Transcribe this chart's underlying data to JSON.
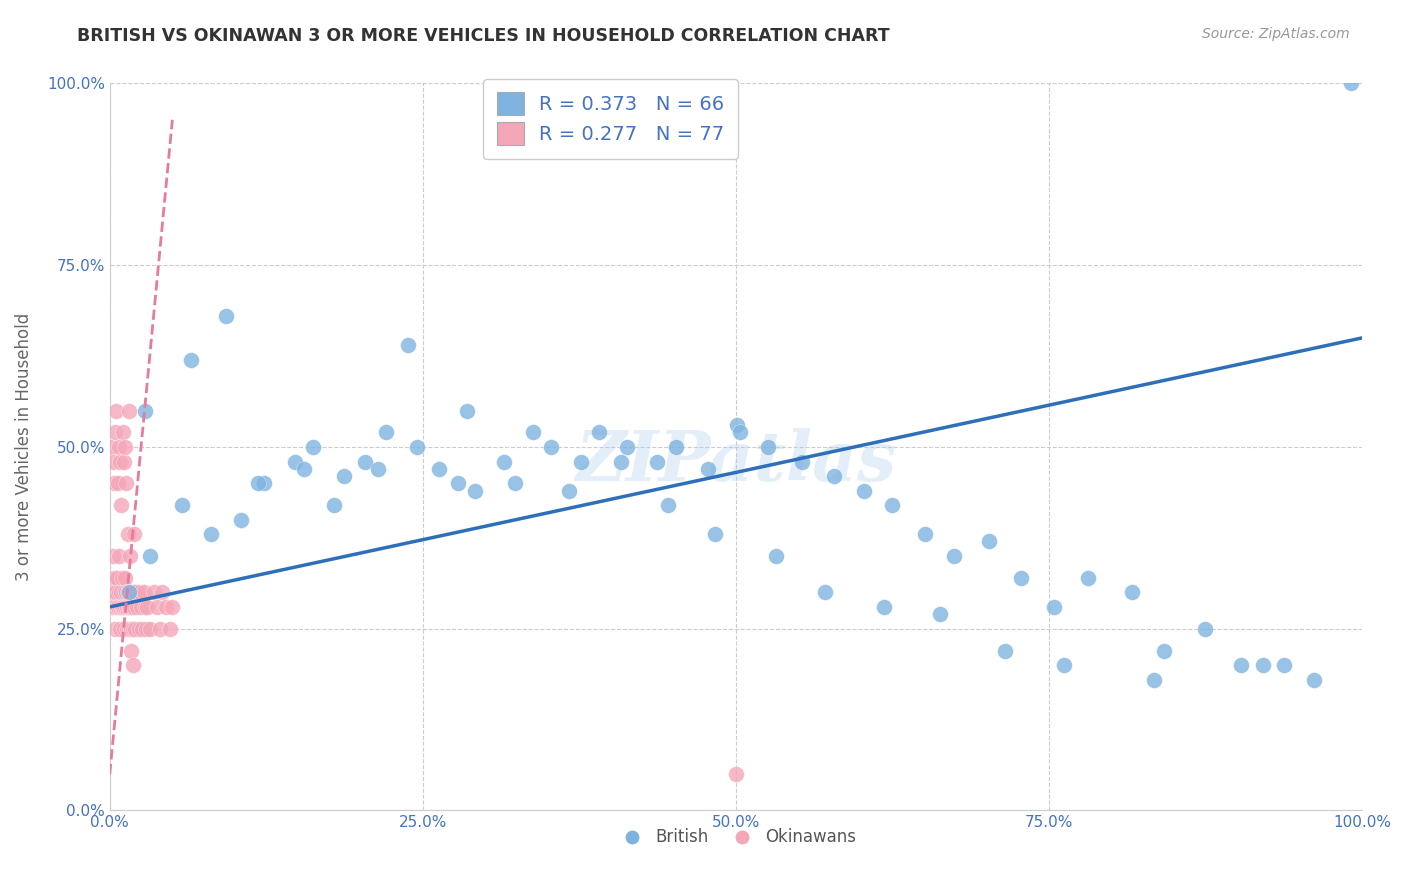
{
  "title": "BRITISH VS OKINAWAN 3 OR MORE VEHICLES IN HOUSEHOLD CORRELATION CHART",
  "source_text": "Source: ZipAtlas.com",
  "ylabel": "3 or more Vehicles in Household",
  "xlabel": "",
  "xlim": [
    0,
    100
  ],
  "ylim": [
    0,
    100
  ],
  "xticks": [
    0,
    25,
    50,
    75,
    100
  ],
  "yticks": [
    0,
    25,
    50,
    75,
    100
  ],
  "xticklabels": [
    "0.0%",
    "25.0%",
    "50.0%",
    "75.0%",
    "100.0%"
  ],
  "yticklabels": [
    "0.0%",
    "25.0%",
    "50.0%",
    "75.0%",
    "100.0%"
  ],
  "british_color": "#7eb3e0",
  "okinawan_color": "#f4a7b9",
  "british_line_color": "#2e6fba",
  "okinawan_line_color": "#e87a9a",
  "watermark": "ZIPatlas",
  "legend_british": "British",
  "legend_okinawan": "Okinawans",
  "R_british": 0.373,
  "N_british": 66,
  "R_okinawan": 0.277,
  "N_okinawan": 77,
  "british_x": [
    1.5,
    3.2,
    5.8,
    8.1,
    10.5,
    12.3,
    14.8,
    16.2,
    18.7,
    20.4,
    22.1,
    24.5,
    26.3,
    27.8,
    29.2,
    31.5,
    33.8,
    35.2,
    37.6,
    39.1,
    41.3,
    43.7,
    45.2,
    47.8,
    50.1,
    50.3,
    52.6,
    55.3,
    57.8,
    60.2,
    62.5,
    65.1,
    67.4,
    70.2,
    72.8,
    75.4,
    78.1,
    81.6,
    84.2,
    87.5,
    90.3,
    93.8,
    96.2,
    99.1,
    2.8,
    6.5,
    9.3,
    11.8,
    15.5,
    17.9,
    21.4,
    23.8,
    28.5,
    32.4,
    36.7,
    40.8,
    44.6,
    48.3,
    53.2,
    57.1,
    61.8,
    66.3,
    71.5,
    76.2,
    83.4,
    92.1
  ],
  "british_y": [
    30,
    35,
    42,
    38,
    40,
    45,
    48,
    50,
    46,
    48,
    52,
    50,
    47,
    45,
    44,
    48,
    52,
    50,
    48,
    52,
    50,
    48,
    50,
    47,
    53,
    52,
    50,
    48,
    46,
    44,
    42,
    38,
    35,
    37,
    32,
    28,
    32,
    30,
    22,
    25,
    20,
    20,
    18,
    100,
    55,
    62,
    68,
    45,
    47,
    42,
    47,
    64,
    55,
    45,
    44,
    48,
    42,
    38,
    35,
    30,
    28,
    27,
    22,
    20,
    18,
    20
  ],
  "okinawan_x": [
    0.1,
    0.15,
    0.2,
    0.25,
    0.3,
    0.35,
    0.4,
    0.45,
    0.5,
    0.55,
    0.6,
    0.65,
    0.7,
    0.75,
    0.8,
    0.85,
    0.9,
    0.95,
    1.0,
    1.05,
    1.1,
    1.15,
    1.2,
    1.25,
    1.3,
    1.35,
    1.4,
    1.45,
    1.5,
    1.55,
    1.6,
    1.65,
    1.7,
    1.75,
    1.8,
    1.85,
    1.9,
    1.95,
    2.0,
    2.1,
    2.2,
    2.3,
    2.4,
    2.5,
    2.6,
    2.7,
    2.8,
    2.9,
    3.0,
    3.2,
    3.5,
    3.8,
    4.0,
    4.2,
    4.5,
    4.8,
    5.0,
    0.12,
    0.22,
    0.32,
    0.42,
    0.52,
    0.62,
    0.72,
    0.82,
    0.92,
    1.02,
    1.12,
    1.22,
    1.32,
    1.42,
    1.52,
    1.62,
    1.72,
    1.82,
    1.92,
    50.0
  ],
  "okinawan_y": [
    28,
    32,
    30,
    35,
    28,
    30,
    32,
    25,
    30,
    28,
    32,
    28,
    30,
    35,
    28,
    25,
    30,
    28,
    32,
    28,
    30,
    25,
    32,
    28,
    30,
    28,
    25,
    30,
    28,
    25,
    30,
    28,
    25,
    30,
    28,
    25,
    30,
    28,
    25,
    30,
    28,
    25,
    30,
    28,
    25,
    30,
    28,
    25,
    28,
    25,
    30,
    28,
    25,
    30,
    28,
    25,
    28,
    50,
    48,
    45,
    52,
    55,
    45,
    50,
    48,
    42,
    52,
    48,
    50,
    45,
    38,
    55,
    35,
    22,
    20,
    38,
    5
  ],
  "brit_line_x0": 0,
  "brit_line_y0": 28,
  "brit_line_x1": 100,
  "brit_line_y1": 65,
  "okin_line_x0": 0,
  "okin_line_y0": 5,
  "okin_line_x1": 5,
  "okin_line_y1": 95
}
